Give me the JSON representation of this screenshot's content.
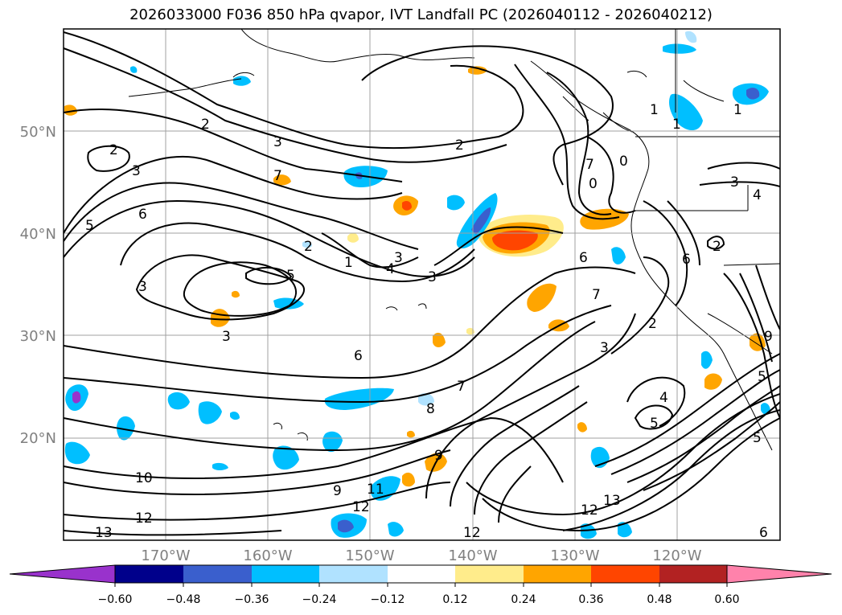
{
  "title": "2026033000 F036 850 hPa qvapor, IVT Landfall PC (2026040112 - 2026040212)",
  "map": {
    "projection": "PlateCarree",
    "extent": {
      "lon_min": -180,
      "lon_max": -110,
      "lat_min": 10,
      "lat_max": 60
    },
    "gridlines": true,
    "lat_ticks": [
      {
        "value": 20,
        "label": "20°N"
      },
      {
        "value": 30,
        "label": "30°N"
      },
      {
        "value": 40,
        "label": "40°N"
      },
      {
        "value": 50,
        "label": "50°N"
      }
    ],
    "lon_ticks": [
      {
        "value": -170,
        "label": "170°W"
      },
      {
        "value": -160,
        "label": "160°W"
      },
      {
        "value": -150,
        "label": "150°W"
      },
      {
        "value": -140,
        "label": "140°W"
      },
      {
        "value": -130,
        "label": "130°W"
      },
      {
        "value": -120,
        "label": "120°W"
      }
    ]
  },
  "colorbar": {
    "colors": [
      "#9932CC",
      "#00008B",
      "#3A5FCD",
      "#00BFFF",
      "#B0E2FF",
      "#FFFFFF",
      "#FFEC8B",
      "#FFA500",
      "#FF4500",
      "#B22222",
      "#FF82AB"
    ],
    "tick_labels": [
      "−0.60",
      "−0.48",
      "−0.36",
      "−0.24",
      "−0.12",
      "0.12",
      "0.24",
      "0.36",
      "0.48",
      "0.60"
    ]
  },
  "contour_labels": [
    "2",
    "3",
    "2",
    "2",
    "7",
    "3",
    "5",
    "6",
    "3",
    "2",
    "4",
    "3",
    "3",
    "1",
    "5",
    "3",
    "6",
    "7",
    "8",
    "9",
    "10",
    "12",
    "13",
    "11",
    "12",
    "12",
    "13",
    "12",
    "9",
    "7",
    "0",
    "0",
    "1",
    "1",
    "1",
    "2",
    "3",
    "4",
    "5",
    "6",
    "6",
    "7",
    "2",
    "3",
    "4",
    "5",
    "5",
    "6",
    "9"
  ]
}
